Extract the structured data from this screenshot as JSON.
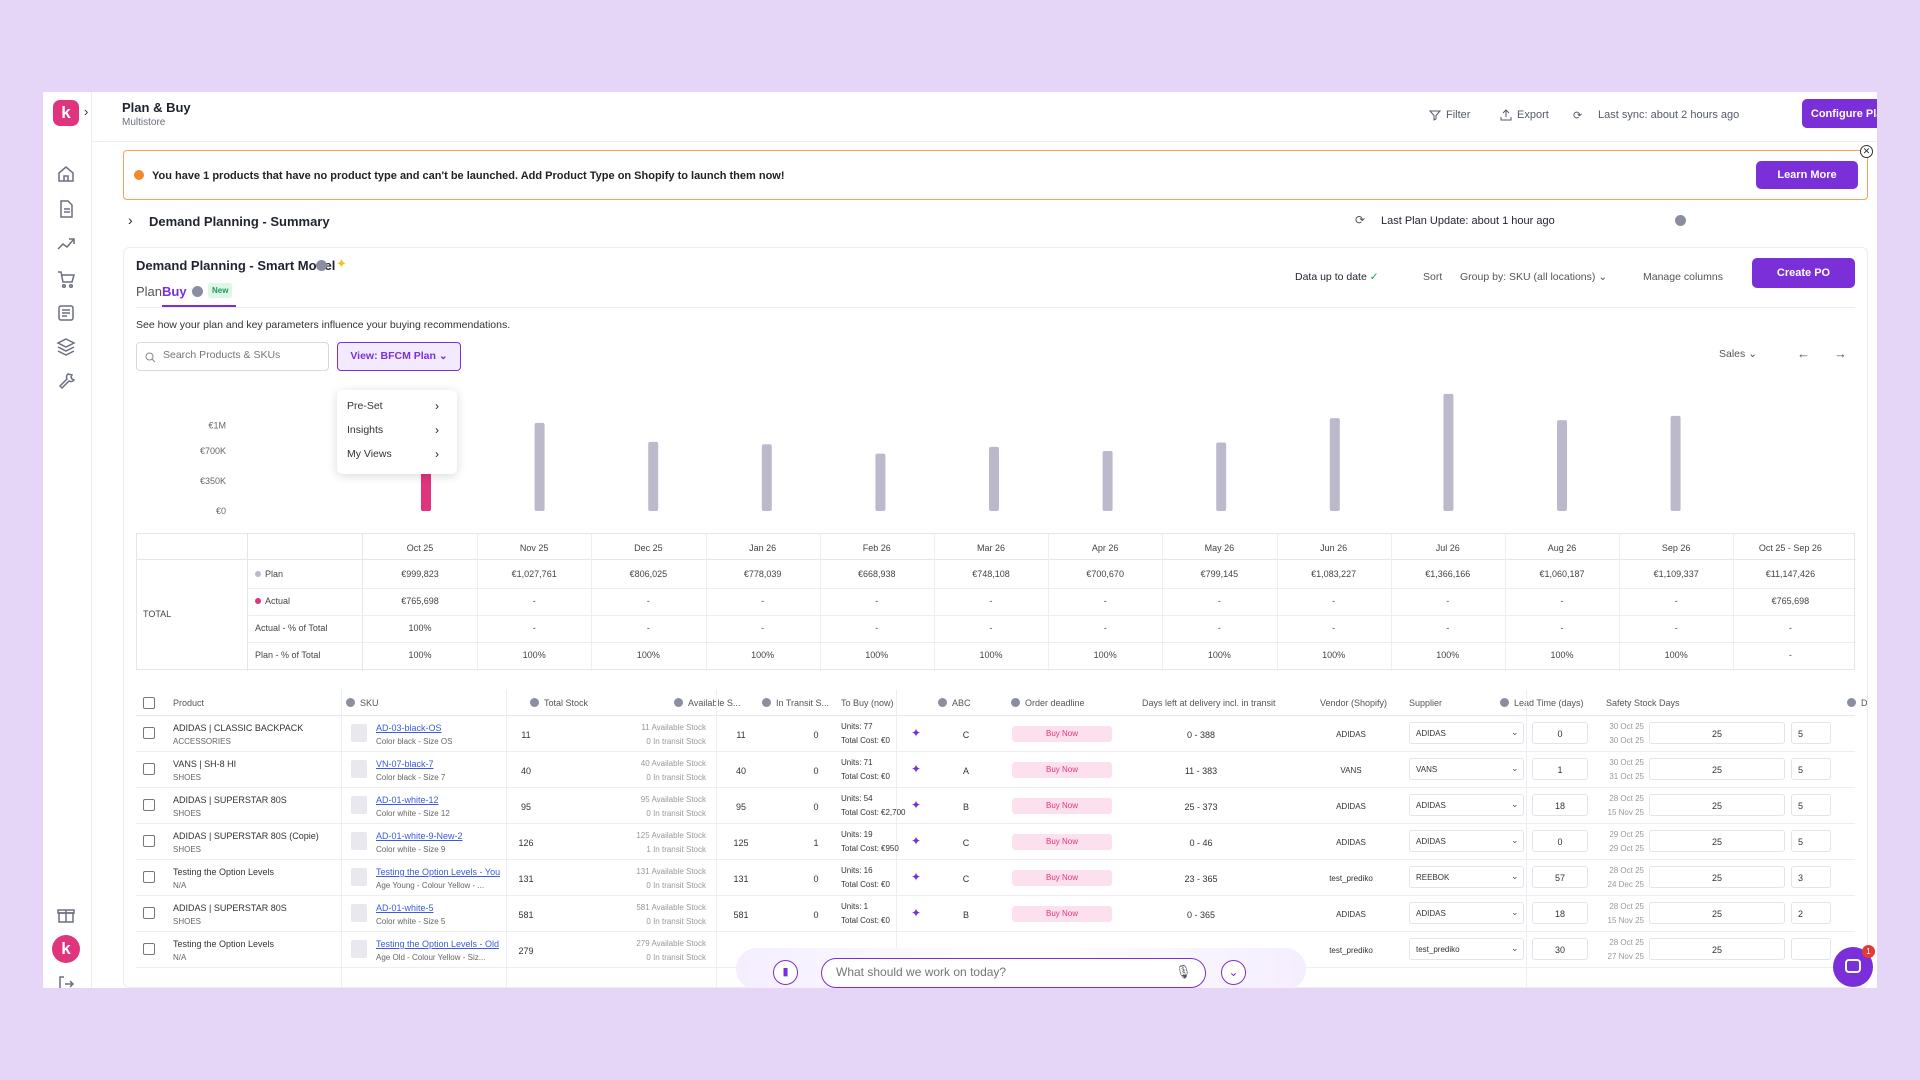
{
  "header": {
    "title": "Plan & Buy",
    "subtitle": "Multistore",
    "filter": "Filter",
    "export": "Export",
    "last_sync": "Last sync: about 2 hours ago",
    "configure": "Configure Plan"
  },
  "banner": {
    "text": "You have 1 products that have no product type and can't be launched. Add Product Type on Shopify to launch them now!",
    "learn_more": "Learn More"
  },
  "summary": {
    "title": "Demand Planning - Summary",
    "last_update": "Last Plan Update: about 1 hour ago"
  },
  "panel": {
    "title": "Demand Planning - Smart Model",
    "tabs": [
      "Plan",
      "Buy"
    ],
    "new_badge": "New",
    "data_status": "Data up to date",
    "sort": "Sort",
    "group_by": "Group by: SKU (all locations)",
    "manage_columns": "Manage columns",
    "create_po": "Create PO",
    "description": "See how your plan and key parameters influence your buying recommendations.",
    "search_placeholder": "Search Products & SKUs",
    "view_button": "View: BFCM Plan",
    "metric_select": "Sales"
  },
  "view_menu": [
    "Pre-Set",
    "Insights",
    "My Views"
  ],
  "chart_data": {
    "type": "bar",
    "categories": [
      "Oct 25",
      "Nov 25",
      "Dec 25",
      "Jan 26",
      "Feb 26",
      "Mar 26",
      "Apr 26",
      "May 26",
      "Jun 26",
      "Jul 26",
      "Aug 26",
      "Sep 26"
    ],
    "series": [
      {
        "name": "Plan",
        "values": [
          999823,
          1027761,
          806025,
          778039,
          668938,
          748108,
          700670,
          799145,
          1083227,
          1366166,
          1060187,
          1109337
        ]
      },
      {
        "name": "Actual",
        "values": [
          765698,
          null,
          null,
          null,
          null,
          null,
          null,
          null,
          null,
          null,
          null,
          null
        ]
      }
    ],
    "y_ticks": [
      "€1M",
      "€700K",
      "€350K",
      "€0"
    ],
    "ylim": [
      0,
      1400000
    ],
    "colors": {
      "plan": "#bdb9cc",
      "actual": "#e0347c"
    }
  },
  "totals": {
    "group_label": "TOTAL",
    "columns": [
      "Oct 25",
      "Nov 25",
      "Dec 25",
      "Jan 26",
      "Feb 26",
      "Mar 26",
      "Apr 26",
      "May 26",
      "Jun 26",
      "Jul 26",
      "Aug 26",
      "Sep 26",
      "Oct 25 - Sep 26"
    ],
    "rows": [
      {
        "label": "Plan",
        "values": [
          "€999,823",
          "€1,027,761",
          "€806,025",
          "€778,039",
          "€668,938",
          "€748,108",
          "€700,670",
          "€799,145",
          "€1,083,227",
          "€1,366,166",
          "€1,060,187",
          "€1,109,337",
          "€11,147,426"
        ]
      },
      {
        "label": "Actual",
        "values": [
          "€765,698",
          "-",
          "-",
          "-",
          "-",
          "-",
          "-",
          "-",
          "-",
          "-",
          "-",
          "-",
          "€765,698"
        ]
      },
      {
        "label": "Actual - % of Total",
        "values": [
          "100%",
          "-",
          "-",
          "-",
          "-",
          "-",
          "-",
          "-",
          "-",
          "-",
          "-",
          "-",
          "-"
        ]
      },
      {
        "label": "Plan - % of Total",
        "values": [
          "100%",
          "100%",
          "100%",
          "100%",
          "100%",
          "100%",
          "100%",
          "100%",
          "100%",
          "100%",
          "100%",
          "100%",
          "-"
        ]
      }
    ]
  },
  "grid": {
    "headers": [
      "Product",
      "SKU",
      "Total Stock",
      "Available S...",
      "In Transit S...",
      "To Buy (now)",
      "ABC",
      "Order deadline",
      "Days left at delivery incl. in transit",
      "Vendor (Shopify)",
      "Supplier",
      "Lead Time (days)",
      "Safety Stock Days",
      "D"
    ],
    "rows": [
      {
        "product": "ADIDAS | CLASSIC BACKPACK",
        "type": "ACCESSORIES",
        "sku": "AD-03-black-OS",
        "variant": "Color black - Size OS",
        "stock": "11",
        "avail_note": "11 Available Stock",
        "transit_note": "0 In transit Stock",
        "available": "11",
        "in_transit": "0",
        "units": "Units:  77",
        "cost": "Total Cost: €0",
        "abc": "C",
        "deadline": "Buy Now",
        "days": "0 - 388",
        "vendor": "ADIDAS",
        "supplier": "ADIDAS",
        "lead": "0",
        "date1": "30 Oct 25",
        "date2": "30 Oct 25",
        "safety": "25",
        "d": "5"
      },
      {
        "product": "VANS | SH-8 HI",
        "type": "SHOES",
        "sku": "VN-07-black-7",
        "variant": "Color black - Size 7",
        "stock": "40",
        "avail_note": "40 Available Stock",
        "transit_note": "0 In transit Stock",
        "available": "40",
        "in_transit": "0",
        "units": "Units:  71",
        "cost": "Total Cost: €0",
        "abc": "A",
        "deadline": "Buy Now",
        "days": "11 - 383",
        "vendor": "VANS",
        "supplier": "VANS",
        "lead": "1",
        "date1": "30 Oct 25",
        "date2": "31 Oct 25",
        "safety": "25",
        "d": "5"
      },
      {
        "product": "ADIDAS | SUPERSTAR 80S",
        "type": "SHOES",
        "sku": "AD-01-white-12",
        "variant": "Color white - Size 12",
        "stock": "95",
        "avail_note": "95 Available Stock",
        "transit_note": "0 In transit Stock",
        "available": "95",
        "in_transit": "0",
        "units": "Units:  54",
        "cost": "Total Cost: €2,700",
        "abc": "B",
        "deadline": "Buy Now",
        "days": "25 - 373",
        "vendor": "ADIDAS",
        "supplier": "ADIDAS",
        "lead": "18",
        "date1": "28 Oct 25",
        "date2": "15 Nov 25",
        "safety": "25",
        "d": "5"
      },
      {
        "product": "ADIDAS | SUPERSTAR 80S (Copie)",
        "type": "SHOES",
        "sku": "AD-01-white-9-New-2",
        "variant": "Color white - Size 9",
        "stock": "126",
        "avail_note": "125 Available Stock",
        "transit_note": "1 In transit Stock",
        "available": "125",
        "in_transit": "1",
        "units": "Units:  19",
        "cost": "Total Cost: €950",
        "abc": "C",
        "deadline": "Buy Now",
        "days": "0 - 46",
        "vendor": "ADIDAS",
        "supplier": "ADIDAS",
        "lead": "0",
        "date1": "29 Oct 25",
        "date2": "29 Oct 25",
        "safety": "25",
        "d": "5"
      },
      {
        "product": "Testing the Option Levels",
        "type": "N/A",
        "sku": "Testing the Option Levels - You",
        "variant": "Age Young - Colour Yellow - ...",
        "stock": "131",
        "avail_note": "131 Available Stock",
        "transit_note": "0 In transit Stock",
        "available": "131",
        "in_transit": "0",
        "units": "Units:  16",
        "cost": "Total Cost: €0",
        "abc": "C",
        "deadline": "Buy Now",
        "days": "23 - 365",
        "vendor": "test_prediko",
        "supplier": "REEBOK",
        "lead": "57",
        "date1": "28 Oct 25",
        "date2": "24 Dec 25",
        "safety": "25",
        "d": "3"
      },
      {
        "product": "ADIDAS | SUPERSTAR 80S",
        "type": "SHOES",
        "sku": "AD-01-white-5",
        "variant": "Color white - Size 5",
        "stock": "581",
        "avail_note": "581 Available Stock",
        "transit_note": "0 In transit Stock",
        "available": "581",
        "in_transit": "0",
        "units": "Units:  1",
        "cost": "Total Cost: €0",
        "abc": "B",
        "deadline": "Buy Now",
        "days": "0 - 365",
        "vendor": "ADIDAS",
        "supplier": "ADIDAS",
        "lead": "18",
        "date1": "28 Oct 25",
        "date2": "15 Nov 25",
        "safety": "25",
        "d": "2"
      },
      {
        "product": "Testing the Option Levels",
        "type": "N/A",
        "sku": "Testing the Option Levels - Old",
        "variant": "Age Old - Colour Yellow - Siz...",
        "stock": "279",
        "avail_note": "279 Available Stock",
        "transit_note": "0 In transit Stock",
        "available": "",
        "in_transit": "",
        "units": "",
        "cost": "",
        "abc": "",
        "deadline": "",
        "days": "",
        "vendor": "test_prediko",
        "supplier": "test_prediko",
        "lead": "30",
        "date1": "28 Oct 25",
        "date2": "27 Nov 25",
        "safety": "25",
        "d": ""
      }
    ]
  },
  "chat": {
    "placeholder": "What should we work on today?"
  },
  "notification_count": "1"
}
